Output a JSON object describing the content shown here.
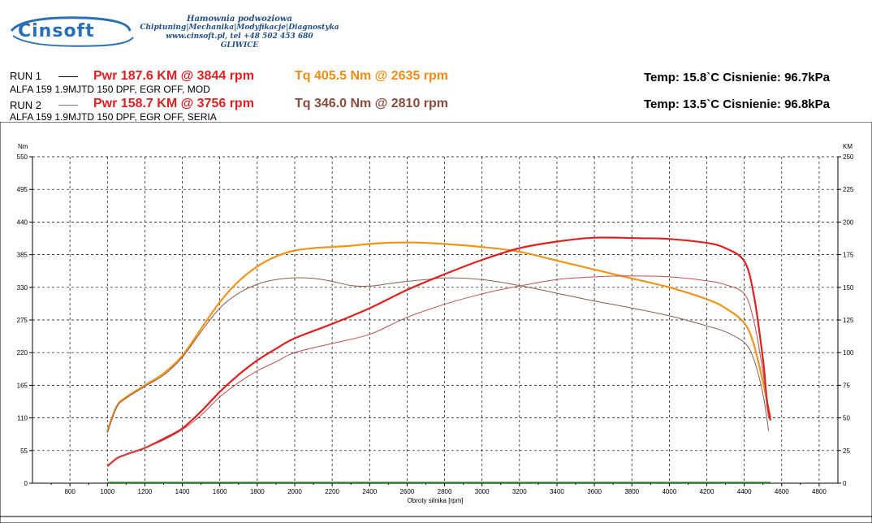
{
  "header": {
    "logo_text": "Cinsoft",
    "company_line1": "Hamownia podwoziowa",
    "company_line2": "Chiptuning|Mechanika|Modyfikacje|Diagnostyka",
    "company_line3": "www.cinsoft.pl, tel +48 502 453 680",
    "company_line4": "GLIWICE"
  },
  "runs": [
    {
      "label": "RUN 1",
      "pwr": "Pwr  187.6 KM @ 3844 rpm",
      "tq": "Tq 405.5 Nm @ 2635 rpm",
      "desc": "ALFA 159 1.9MJTD 150 DPF, EGR OFF, MOD",
      "env": "Temp: 15.8`C   Cisnienie: 96.7kPa"
    },
    {
      "label": "RUN 2",
      "pwr": "Pwr  158.7 KM @ 3756 rpm",
      "tq": "Tq 346.0 Nm @ 2810 rpm",
      "desc": "ALFA 159 1.9MJTD 150 DPF, EGR OFF, SERIA",
      "env": "Temp: 13.5`C   Cisnienie: 96.8kPa"
    }
  ],
  "colors": {
    "run1_power": "#e02020",
    "run1_torque": "#f29418",
    "run2_power": "#c0504d",
    "run2_torque": "#8b5a50",
    "baseline": "#22aa22",
    "grid": "#000000"
  },
  "chart_data": {
    "type": "line",
    "xlabel": "Obroty silnika [rpm]",
    "ylabel_left": "Nm",
    "ylabel_right": "KM",
    "xlim": [
      600,
      4900
    ],
    "ylim_left": [
      0,
      550
    ],
    "ylim_right": [
      0,
      250
    ],
    "x_ticks": [
      800,
      1000,
      1200,
      1400,
      1600,
      1800,
      2000,
      2200,
      2400,
      2600,
      2800,
      3000,
      3200,
      3400,
      3600,
      3800,
      4000,
      4200,
      4400,
      4600,
      4800
    ],
    "y_ticks_left": [
      0,
      55,
      110,
      165,
      220,
      275,
      330,
      385,
      440,
      495,
      550
    ],
    "y_ticks_right": [
      0,
      25,
      50,
      75,
      100,
      125,
      150,
      175,
      200,
      225,
      250
    ],
    "grid": true,
    "series": [
      {
        "key": "run1_torque",
        "axis": "left",
        "x": [
          1000,
          1050,
          1100,
          1200,
          1300,
          1400,
          1500,
          1600,
          1700,
          1800,
          1900,
          2000,
          2100,
          2200,
          2300,
          2400,
          2500,
          2635,
          2800,
          3000,
          3200,
          3400,
          3600,
          3800,
          4000,
          4200,
          4300,
          4400,
          4450,
          4500,
          4540
        ],
        "y": [
          88,
          130,
          145,
          165,
          185,
          215,
          260,
          305,
          340,
          365,
          382,
          392,
          396,
          398,
          400,
          403,
          405,
          405.5,
          403,
          398,
          390,
          375,
          360,
          345,
          330,
          310,
          295,
          270,
          235,
          170,
          110
        ]
      },
      {
        "key": "run2_torque",
        "axis": "left",
        "x": [
          1000,
          1050,
          1100,
          1200,
          1300,
          1400,
          1500,
          1600,
          1700,
          1800,
          1900,
          2000,
          2100,
          2200,
          2300,
          2400,
          2500,
          2600,
          2700,
          2810,
          3000,
          3200,
          3400,
          3600,
          3800,
          4000,
          4200,
          4300,
          4400,
          4450,
          4500,
          4530
        ],
        "y": [
          85,
          128,
          143,
          163,
          182,
          212,
          255,
          295,
          320,
          335,
          343,
          346,
          345,
          340,
          333,
          332,
          336,
          340,
          343,
          346,
          343,
          333,
          320,
          307,
          295,
          282,
          265,
          255,
          237,
          210,
          150,
          88
        ]
      },
      {
        "key": "run1_power",
        "axis": "right",
        "x": [
          1000,
          1050,
          1100,
          1200,
          1300,
          1400,
          1500,
          1600,
          1700,
          1800,
          1900,
          2000,
          2200,
          2400,
          2600,
          2800,
          3000,
          3200,
          3400,
          3600,
          3844,
          4000,
          4200,
          4300,
          4400,
          4450,
          4500,
          4520,
          4540
        ],
        "y": [
          13,
          19,
          22,
          27,
          34,
          42,
          55,
          70,
          83,
          94,
          103,
          111,
          122,
          134,
          148,
          160,
          171,
          180,
          185,
          188,
          187.6,
          187,
          184,
          180,
          170,
          145,
          95,
          65,
          48
        ]
      },
      {
        "key": "run2_power",
        "axis": "right",
        "x": [
          1000,
          1050,
          1100,
          1200,
          1300,
          1400,
          1500,
          1600,
          1700,
          1800,
          1900,
          2000,
          2200,
          2400,
          2600,
          2800,
          3000,
          3200,
          3400,
          3600,
          3756,
          4000,
          4200,
          4300,
          4400,
          4450,
          4500,
          4520,
          4530
        ],
        "y": [
          13,
          19,
          22,
          27,
          33,
          41,
          52,
          66,
          77,
          86,
          93,
          100,
          107,
          114,
          127,
          137,
          145,
          151,
          156,
          158,
          158.7,
          158,
          155,
          152,
          145,
          125,
          85,
          60,
          50
        ]
      }
    ]
  }
}
